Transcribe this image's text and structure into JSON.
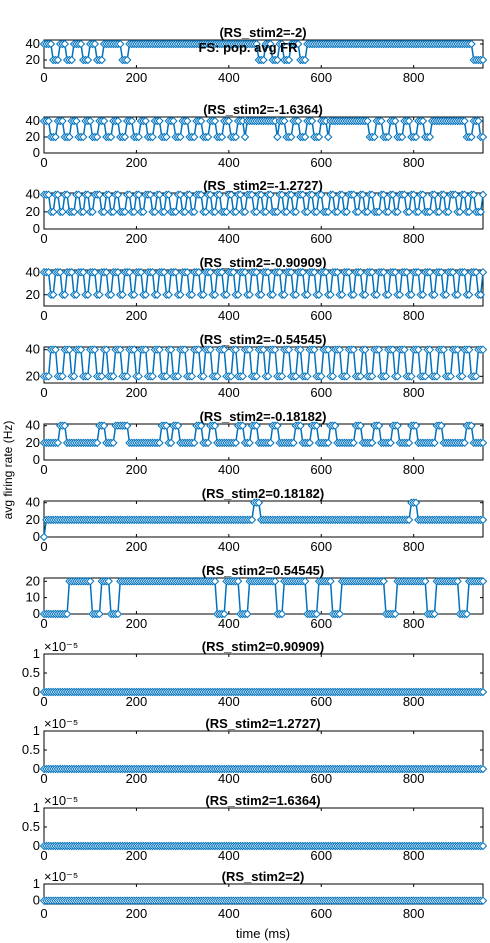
{
  "figure": {
    "suptitle": "FS: pop. avg FR",
    "xlabel": "time (ms)",
    "ylabel": "avg firing rate (Hz)"
  },
  "colors": {
    "series": "#0072BD",
    "axis": "#000000",
    "background": "#ffffff"
  },
  "chart_data": [
    {
      "type": "line",
      "title": "(RS_stim2=-2)",
      "xlim": [
        0,
        950
      ],
      "ylim": [
        10,
        45
      ],
      "yticks": [
        20,
        40
      ],
      "xticks": [
        0,
        200,
        400,
        600,
        800
      ],
      "pattern": "p1",
      "exp": ""
    },
    {
      "type": "line",
      "title": "(RS_stim2=-1.6364)",
      "xlim": [
        0,
        950
      ],
      "ylim": [
        0,
        45
      ],
      "yticks": [
        0,
        20,
        40
      ],
      "xticks": [
        0,
        200,
        400,
        600,
        800
      ],
      "pattern": "p2",
      "exp": ""
    },
    {
      "type": "line",
      "title": "(RS_stim2=-1.2727)",
      "xlim": [
        0,
        950
      ],
      "ylim": [
        0,
        42
      ],
      "yticks": [
        0,
        20,
        40
      ],
      "xticks": [
        0,
        200,
        400,
        600,
        800
      ],
      "pattern": "p3",
      "exp": ""
    },
    {
      "type": "line",
      "title": "(RS_stim2=-0.90909)",
      "xlim": [
        0,
        950
      ],
      "ylim": [
        10,
        42
      ],
      "yticks": [
        20,
        40
      ],
      "xticks": [
        0,
        200,
        400,
        600,
        800
      ],
      "pattern": "p4",
      "exp": ""
    },
    {
      "type": "line",
      "title": "(RS_stim2=-0.54545)",
      "xlim": [
        0,
        950
      ],
      "ylim": [
        15,
        42
      ],
      "yticks": [
        20,
        40
      ],
      "xticks": [
        0,
        200,
        400,
        600,
        800
      ],
      "pattern": "p5",
      "exp": ""
    },
    {
      "type": "line",
      "title": "(RS_stim2=-0.18182)",
      "xlim": [
        0,
        950
      ],
      "ylim": [
        0,
        42
      ],
      "yticks": [
        0,
        20,
        40
      ],
      "xticks": [
        0,
        200,
        400,
        600,
        800
      ],
      "pattern": "p6",
      "exp": ""
    },
    {
      "type": "line",
      "title": "(RS_stim2=0.18182)",
      "xlim": [
        0,
        950
      ],
      "ylim": [
        0,
        42
      ],
      "yticks": [
        0,
        20,
        40
      ],
      "xticks": [
        0,
        200,
        400,
        600,
        800
      ],
      "pattern": "p7",
      "exp": ""
    },
    {
      "type": "line",
      "title": "(RS_stim2=0.54545)",
      "xlim": [
        0,
        950
      ],
      "ylim": [
        0,
        22
      ],
      "yticks": [
        0,
        10,
        20
      ],
      "xticks": [
        0,
        200,
        400,
        600,
        800
      ],
      "pattern": "p8",
      "exp": ""
    },
    {
      "type": "line",
      "title": "(RS_stim2=0.90909)",
      "xlim": [
        0,
        950
      ],
      "ylim": [
        0,
        1
      ],
      "yticks": [
        0,
        0.5,
        1
      ],
      "yticklabels": [
        "0",
        "0.5",
        "1"
      ],
      "xticks": [
        0,
        200,
        400,
        600,
        800
      ],
      "pattern": "zero",
      "exp": "×10⁻⁵"
    },
    {
      "type": "line",
      "title": "(RS_stim2=1.2727)",
      "xlim": [
        0,
        950
      ],
      "ylim": [
        0,
        1
      ],
      "yticks": [
        0,
        0.5,
        1
      ],
      "yticklabels": [
        "0",
        "0.5",
        "1"
      ],
      "xticks": [
        0,
        200,
        400,
        600,
        800
      ],
      "pattern": "zero",
      "exp": "×10⁻⁵"
    },
    {
      "type": "line",
      "title": "(RS_stim2=1.6364)",
      "xlim": [
        0,
        950
      ],
      "ylim": [
        0,
        1
      ],
      "yticks": [
        0,
        0.5,
        1
      ],
      "yticklabels": [
        "0",
        "0.5",
        "1"
      ],
      "xticks": [
        0,
        200,
        400,
        600,
        800
      ],
      "pattern": "zero",
      "exp": "×10⁻⁵"
    },
    {
      "type": "line",
      "title": "(RS_stim2=2)",
      "xlim": [
        0,
        950
      ],
      "ylim": [
        -0.2,
        1
      ],
      "yticks": [
        0,
        1
      ],
      "yticklabels": [
        "0",
        "1"
      ],
      "xticks": [
        0,
        200,
        400,
        600,
        800
      ],
      "pattern": "zero",
      "exp": "×10⁻⁵"
    }
  ],
  "patterns": {
    "p1": {
      "base": 40,
      "dips": [
        [
          25,
          20
        ],
        [
          55,
          20
        ],
        [
          90,
          20
        ],
        [
          120,
          20
        ],
        [
          175,
          20
        ],
        [
          470,
          20
        ],
        [
          500,
          20
        ],
        [
          525,
          20
        ],
        [
          560,
          20
        ],
        [
          935,
          20
        ],
        [
          945,
          20
        ]
      ]
    },
    "p2": {
      "alt": [
        40,
        20
      ],
      "period": 30,
      "flat": [
        [
          440,
          500,
          40
        ],
        [
          620,
          700,
          40
        ],
        [
          850,
          900,
          40
        ]
      ]
    },
    "p3": {
      "alt": [
        40,
        20
      ],
      "period": 22
    },
    "p4": {
      "alt": [
        40,
        20
      ],
      "period": 25
    },
    "p5": {
      "alt": [
        20,
        40
      ],
      "period": 28
    },
    "p6": {
      "base": 20,
      "peaks": [
        [
          40,
          40
        ],
        [
          125,
          40
        ],
        [
          160,
          40
        ],
        [
          175,
          40
        ],
        [
          260,
          40
        ],
        [
          285,
          40
        ],
        [
          335,
          40
        ],
        [
          365,
          40
        ],
        [
          425,
          40
        ],
        [
          455,
          40
        ],
        [
          500,
          40
        ],
        [
          550,
          40
        ],
        [
          585,
          40
        ],
        [
          625,
          40
        ],
        [
          680,
          40
        ],
        [
          720,
          40
        ],
        [
          760,
          40
        ],
        [
          800,
          40
        ],
        [
          855,
          40
        ],
        [
          920,
          40
        ]
      ]
    },
    "p7": {
      "base": 20,
      "first": 0,
      "peaks": [
        [
          460,
          40
        ],
        [
          800,
          40
        ]
      ]
    },
    "p8": {
      "base": 20,
      "zeros": [
        [
          0,
          50
        ],
        [
          105,
          120
        ],
        [
          145,
          160
        ],
        [
          375,
          390
        ],
        [
          425,
          440
        ],
        [
          505,
          515
        ],
        [
          570,
          590
        ],
        [
          625,
          640
        ],
        [
          740,
          760
        ],
        [
          830,
          845
        ],
        [
          900,
          915
        ]
      ]
    },
    "zero": {
      "base": 0
    }
  }
}
